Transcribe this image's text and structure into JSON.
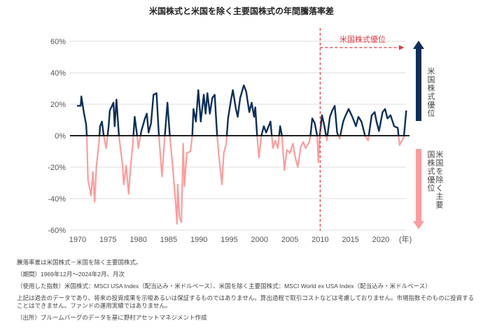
{
  "chart_data": {
    "type": "line",
    "title": "米国株式と米国を除く主要国株式の年間騰落率差",
    "xlabel": "(年)",
    "ylabel": "",
    "xlim": [
      1969.9,
      2024.2
    ],
    "ylim": [
      -60,
      60
    ],
    "y_ticks": [
      "60%",
      "40%",
      "20%",
      "0%",
      "-20%",
      "-40%",
      "-60%"
    ],
    "x_ticks": [
      "1970",
      "1975",
      "1980",
      "1985",
      "1990",
      "1995",
      "2000",
      "2005",
      "2010",
      "2015",
      "2020"
    ],
    "grid": "horizontal",
    "colors": {
      "positive": "#0d2f5a",
      "negative": "#ff9c9c",
      "annotation": "#e0393e",
      "zero_line": "#000000"
    },
    "annotation": {
      "label": "米国株式優位",
      "from_year": 2010
    },
    "side_labels": {
      "up": "米国株式優位",
      "down": "米国を除く主要国株式優位"
    },
    "x": [
      1969.9,
      1970.5,
      1970.6,
      1971.0,
      1971.4,
      1971.5,
      1971.7,
      1972.2,
      1972.5,
      1972.8,
      1973.1,
      1973.5,
      1973.7,
      1974.0,
      1974.3,
      1974.7,
      1975.1,
      1975.3,
      1975.9,
      1976.1,
      1976.4,
      1976.8,
      1977.4,
      1977.6,
      1978.0,
      1978.4,
      1978.8,
      1979.1,
      1979.4,
      1979.8,
      1980.0,
      1980.5,
      1981.1,
      1981.4,
      1981.7,
      1982.1,
      1982.5,
      1983.0,
      1983.4,
      1983.9,
      1984.3,
      1984.8,
      1985.2,
      1985.7,
      1986.1,
      1986.4,
      1986.5,
      1986.8,
      1987.1,
      1987.4,
      1987.6,
      1988.0,
      1988.6,
      1988.9,
      1989.1,
      1989.5,
      1989.9,
      1990.3,
      1990.8,
      1991.1,
      1991.4,
      1991.8,
      1992.2,
      1992.6,
      1993.0,
      1993.3,
      1993.8,
      1994.1,
      1994.5,
      1994.8,
      1995.3,
      1995.6,
      1996.1,
      1996.4,
      1996.8,
      1997.4,
      1997.8,
      1998.3,
      1998.7,
      1999.1,
      1999.3,
      1999.6,
      1999.9,
      2000.3,
      2000.7,
      2001.1,
      2001.8,
      2002.2,
      2002.6,
      2003.0,
      2003.4,
      2003.7,
      2004.1,
      2004.5,
      2005.0,
      2005.5,
      2005.9,
      2006.3,
      2006.8,
      2007.2,
      2007.6,
      2008.2,
      2008.4,
      2008.7,
      2009.1,
      2009.5,
      2009.7,
      2009.9,
      2010.3,
      2010.7,
      2011.1,
      2011.6,
      2012.0,
      2012.4,
      2012.8,
      2013.2,
      2013.8,
      2014.1,
      2014.7,
      2015.3,
      2015.9,
      2016.3,
      2016.8,
      2017.4,
      2017.9,
      2018.5,
      2019.0,
      2019.3,
      2019.7,
      2020.3,
      2020.7,
      2021.1,
      2021.6,
      2022.2,
      2022.8,
      2023.1,
      2023.5,
      2023.8,
      2024.2
    ],
    "y": [
      19,
      19,
      25,
      15,
      7,
      0,
      -28,
      -38,
      -23,
      -42,
      -19,
      -5,
      6,
      9,
      0,
      -8,
      6,
      16,
      21,
      6,
      23,
      0,
      -19,
      -31,
      -19,
      -37,
      -17,
      -5,
      12,
      0,
      -8,
      3,
      11,
      14,
      2,
      8,
      26,
      27,
      0,
      -26,
      -4,
      21,
      0,
      -21,
      -40,
      -56,
      -31,
      -52,
      -55,
      -5,
      -32,
      -11,
      -10,
      0,
      17,
      9,
      29,
      9,
      26,
      14,
      27,
      14,
      24,
      26,
      0,
      -13,
      -31,
      -11,
      -5,
      11,
      23,
      29,
      17,
      12,
      24,
      32,
      28,
      15,
      21,
      12,
      18,
      0,
      -14,
      0,
      6,
      2,
      9,
      -8,
      -3,
      -8,
      6,
      0,
      -22,
      -9,
      -11,
      -5,
      -14,
      -20,
      -7,
      -4,
      -8,
      -4,
      0,
      11,
      8,
      0,
      -17,
      -1,
      13,
      6,
      -3,
      12,
      16,
      19,
      2,
      -2,
      9,
      12,
      17,
      12,
      6,
      12,
      9,
      0,
      -3,
      13,
      15,
      9,
      3,
      15,
      17,
      11,
      13,
      6,
      5,
      -6,
      -3,
      -1,
      16
    ]
  },
  "notes": [
    "騰落率差は米国株式－米国を除く主要国株式。",
    "（期間）1969年12月～2024年2月、月次",
    "（使用した指数）米国株式：MSCI USA Index（配当込み・米ドルベース）、米国を除く主要国株式：MSCI World ex USA Index（配当込み・米ドルベース）",
    "上記は過去のデータであり、将来の投資成果を示唆あるいは保証するものではありません。算出過程で取引コストなどは考慮しておりません。市場指数そのものに投資することはできません。ファンドの運用実績ではありません。",
    "（出所）ブルームバーグのデータを基に野村アセットマネジメント作成"
  ]
}
